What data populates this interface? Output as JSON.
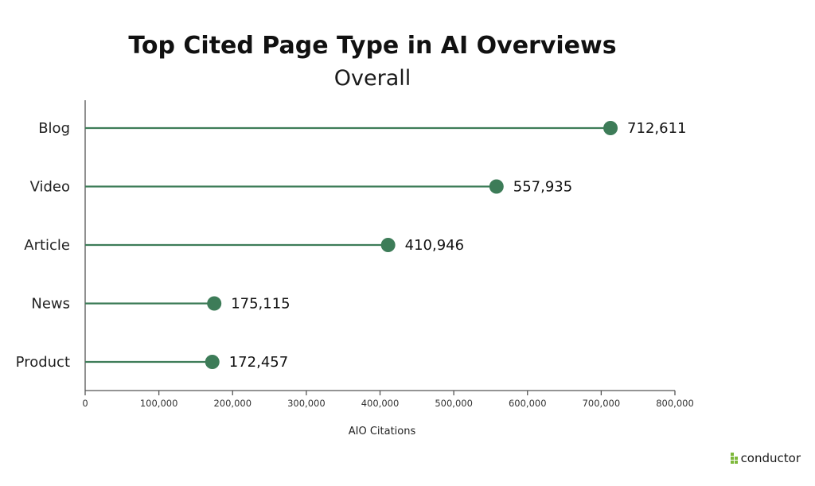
{
  "chart_data": {
    "type": "lollipop",
    "title": "Top Cited Page Type in AI Overviews",
    "subtitle": "Overall",
    "xlabel": "AIO Citations",
    "ylabel": "",
    "xlim": [
      0,
      800000
    ],
    "x_ticks": [
      0,
      100000,
      200000,
      300000,
      400000,
      500000,
      600000,
      700000,
      800000
    ],
    "x_tick_labels": [
      "0",
      "100,000",
      "200,000",
      "300,000",
      "400,000",
      "500,000",
      "600,000",
      "700,000",
      "800,000"
    ],
    "categories": [
      "Blog",
      "Video",
      "Article",
      "News",
      "Product"
    ],
    "values": [
      712611,
      557935,
      410946,
      175115,
      172457
    ],
    "value_labels": [
      "712,611",
      "557,935",
      "410,946",
      "175,115",
      "172,457"
    ],
    "color": "#3d7c58",
    "grid": false,
    "legend": "none"
  },
  "brand": {
    "name": "conductor",
    "accent": "#7db83a"
  }
}
